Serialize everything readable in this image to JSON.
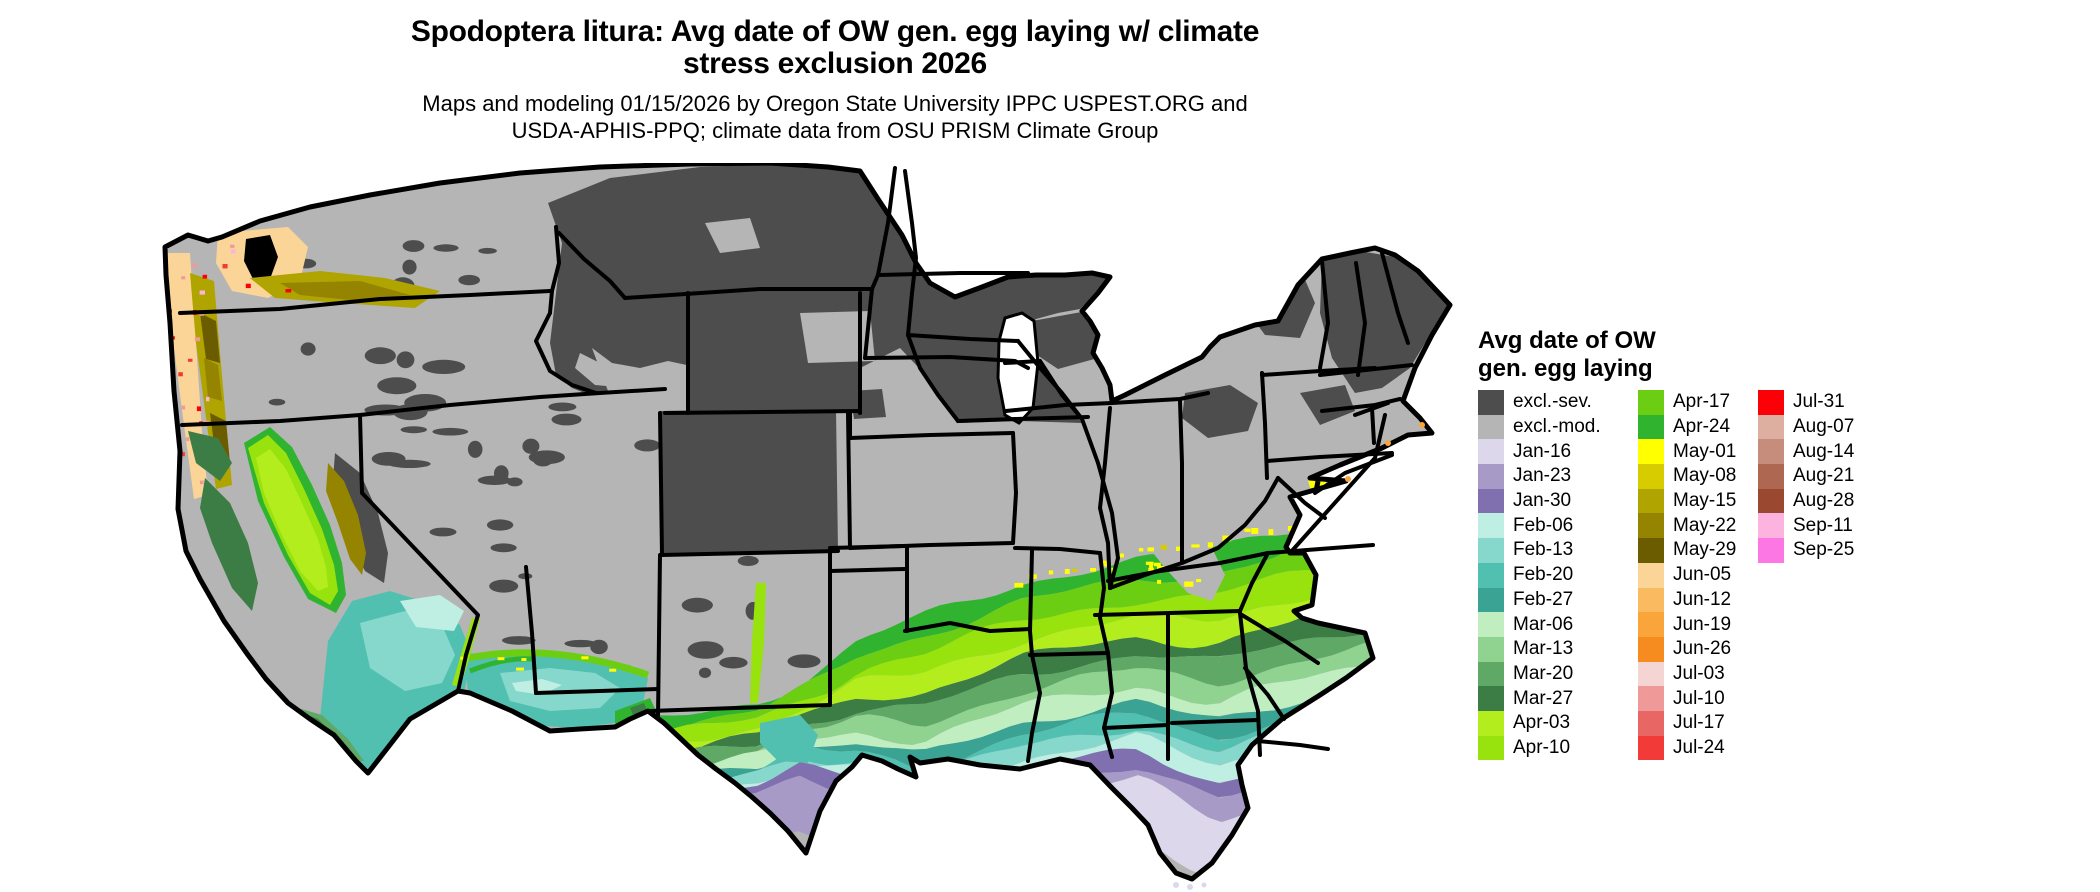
{
  "title": {
    "line1": "Spodoptera litura: Avg date of OW gen. egg laying w/ climate",
    "line2": "stress exclusion 2026"
  },
  "subtitle": {
    "line1": "Maps and modeling 01/15/2026 by Oregon State University IPPC USPEST.ORG and",
    "line2": "USDA-APHIS-PPQ; climate data from OSU PRISM Climate Group"
  },
  "legend": {
    "title_line1": "Avg date of OW",
    "title_line2": "gen. egg laying",
    "columns": [
      {
        "entries": [
          {
            "label": "excl.-sev.",
            "color": "#4d4d4d"
          },
          {
            "label": "excl.-mod.",
            "color": "#b5b5b5"
          },
          {
            "label": "Jan-16",
            "color": "#dcd7eb"
          },
          {
            "label": "Jan-23",
            "color": "#a89ac6"
          },
          {
            "label": "Jan-30",
            "color": "#8070b0"
          },
          {
            "label": "Feb-06",
            "color": "#bfeee2"
          },
          {
            "label": "Feb-13",
            "color": "#86d8cc"
          },
          {
            "label": "Feb-20",
            "color": "#52c0b0"
          },
          {
            "label": "Feb-27",
            "color": "#3aa393"
          },
          {
            "label": "Mar-06",
            "color": "#c0eec0"
          },
          {
            "label": "Mar-13",
            "color": "#90d290"
          },
          {
            "label": "Mar-20",
            "color": "#60a865"
          },
          {
            "label": "Mar-27",
            "color": "#3c7c45"
          },
          {
            "label": "Apr-03",
            "color": "#b4ed1e"
          },
          {
            "label": "Apr-10",
            "color": "#98e20d"
          }
        ]
      },
      {
        "entries": [
          {
            "label": "Apr-17",
            "color": "#6cce12"
          },
          {
            "label": "Apr-24",
            "color": "#30b430"
          },
          {
            "label": "May-01",
            "color": "#ffff00"
          },
          {
            "label": "May-08",
            "color": "#d6cc00"
          },
          {
            "label": "May-15",
            "color": "#b0a400"
          },
          {
            "label": "May-22",
            "color": "#948400"
          },
          {
            "label": "May-29",
            "color": "#6b5c00"
          },
          {
            "label": "Jun-05",
            "color": "#fbd598"
          },
          {
            "label": "Jun-12",
            "color": "#fabb60"
          },
          {
            "label": "Jun-19",
            "color": "#f9a53c"
          },
          {
            "label": "Jun-26",
            "color": "#f68b1f"
          },
          {
            "label": "Jul-03",
            "color": "#f5d5d3"
          },
          {
            "label": "Jul-10",
            "color": "#ef9a98"
          },
          {
            "label": "Jul-17",
            "color": "#e86765"
          },
          {
            "label": "Jul-24",
            "color": "#f23b38"
          }
        ]
      },
      {
        "entries": [
          {
            "label": "Jul-31",
            "color": "#fb0007"
          },
          {
            "label": "Aug-07",
            "color": "#dcafa1"
          },
          {
            "label": "Aug-14",
            "color": "#c68c7c"
          },
          {
            "label": "Aug-21",
            "color": "#ae6852"
          },
          {
            "label": "Aug-28",
            "color": "#9a4830"
          },
          {
            "label": "Sep-11",
            "color": "#fcb3df"
          },
          {
            "label": "Sep-25",
            "color": "#fc77e3"
          }
        ]
      }
    ]
  },
  "map": {
    "region": "Continental United States",
    "background_color": "#ffffff",
    "border_color": "#000000",
    "band_order_north_to_south": [
      "May-01",
      "Apr-24",
      "Apr-17",
      "Apr-10",
      "Apr-03",
      "Mar-27",
      "Mar-20",
      "Mar-13",
      "Mar-06",
      "Feb-27",
      "Feb-20",
      "Feb-13",
      "Feb-06",
      "Jan-30",
      "Jan-23",
      "Jan-16"
    ],
    "regions_summary": [
      "Northern tier (MT, ND, MN, WI, upper MI, WY, CO, ID, New England) shaded excl.-sev. dark gray",
      "Central plains, Great Basin, Midwest and mid-Atlantic shaded excl.-mod. light gray",
      "South shows latitudinal date bands from Apr-24 greens through Feb teals to Jan purples in south Texas and Florida",
      "Pacific Northwest coast shows Jun oranges with Jul/Aug red-pink speckles; Cascades and Sierra foothills show May olive tones",
      "California Central Valley bright Apr yellow-greens; southern California and southern Arizona Feb teals"
    ]
  }
}
